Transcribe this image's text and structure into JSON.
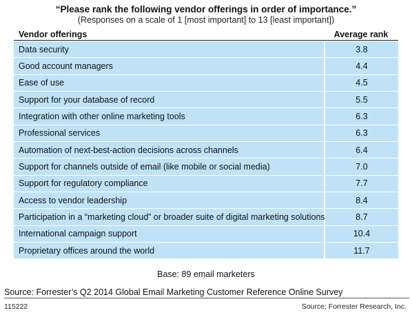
{
  "chart_data": {
    "type": "table",
    "title": "“Please rank the following vendor offerings in order of importance.”",
    "subtitle": "(Responses on a scale of 1 [most important] to 13 [least important])",
    "columns": [
      "Vendor offerings",
      "Average rank"
    ],
    "rows": [
      {
        "label": "Data security",
        "value": "3.8"
      },
      {
        "label": "Good account managers",
        "value": "4.4"
      },
      {
        "label": "Ease of use",
        "value": "4.5"
      },
      {
        "label": "Support for your database of record",
        "value": "5.5"
      },
      {
        "label": "Integration with other online marketing tools",
        "value": "6.3"
      },
      {
        "label": "Professional services",
        "value": "6.3"
      },
      {
        "label": "Automation of next-best-action decisions across channels",
        "value": "6.4"
      },
      {
        "label": "Support for channels outside of email (like mobile or social media)",
        "value": "7.0"
      },
      {
        "label": "Support for regulatory compliance",
        "value": "7.7"
      },
      {
        "label": "Access to vendor leadership",
        "value": "8.4"
      },
      {
        "label": "Participation in a “marketing cloud” or broader suite of digital marketing solutions",
        "value": "8.7"
      },
      {
        "label": "International campaign support",
        "value": "10.4"
      },
      {
        "label": "Proprietary offices around the world",
        "value": "11.7"
      }
    ],
    "base_note": "Base: 89 email marketers",
    "source": "Source: Forrester’s Q2 2014 Global Email Marketing Customer Reference Online Survey",
    "figure_id": "115222",
    "publisher_credit": "Source: Forrester Research, Inc."
  },
  "colors": {
    "cell_fill": "#bfe2f6",
    "text": "#111111",
    "rule": "#1a1a1a"
  }
}
